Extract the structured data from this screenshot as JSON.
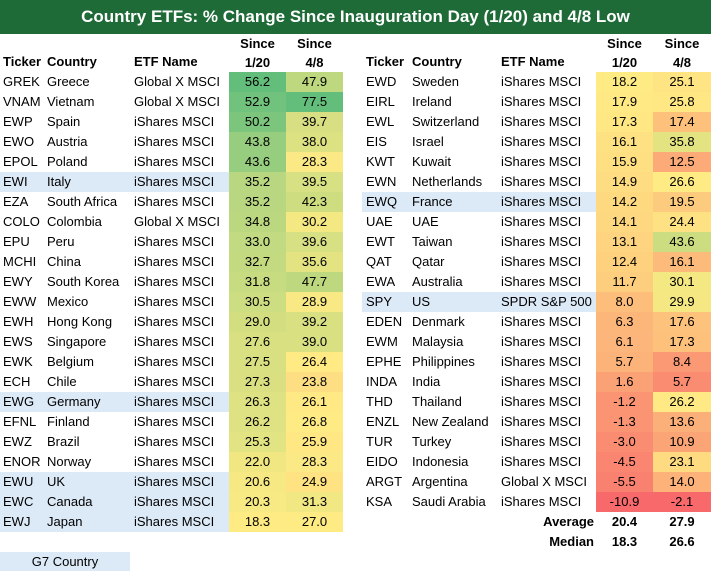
{
  "title": "Country ETFs: % Change Since Inauguration Day (1/20) and 4/8 Low",
  "headers": {
    "ticker": "Ticker",
    "country": "Country",
    "etf_name": "ETF Name",
    "col1_line1": "Since",
    "col1_line2": "1/20",
    "col2_line1": "Since",
    "col2_line2": "4/8"
  },
  "colors": {
    "title_bg": "#1e6b37",
    "g7_highlight": "#dce9f7",
    "scale_low": "#f8696b",
    "scale_mid": "#ffeb84",
    "scale_high": "#63be7b"
  },
  "chart_data": {
    "type": "table",
    "title": "Country ETFs: % Change Since Inauguration Day (1/20) and 4/8 Low",
    "columns": [
      "Ticker",
      "Country",
      "ETF Name",
      "Since 1/20",
      "Since 4/8"
    ],
    "left": [
      {
        "ticker": "GREK",
        "country": "Greece",
        "etf": "Global X MSCI",
        "since_1_20": "56.2",
        "since_4_8": "47.9",
        "g7": false
      },
      {
        "ticker": "VNAM",
        "country": "Vietnam",
        "etf": "Global X MSCI",
        "since_1_20": "52.9",
        "since_4_8": "77.5",
        "g7": false
      },
      {
        "ticker": "EWP",
        "country": "Spain",
        "etf": "iShares MSCI",
        "since_1_20": "50.2",
        "since_4_8": "39.7",
        "g7": false
      },
      {
        "ticker": "EWO",
        "country": "Austria",
        "etf": "iShares MSCI",
        "since_1_20": "43.8",
        "since_4_8": "38.0",
        "g7": false
      },
      {
        "ticker": "EPOL",
        "country": "Poland",
        "etf": "iShares MSCI",
        "since_1_20": "43.6",
        "since_4_8": "28.3",
        "g7": false
      },
      {
        "ticker": "EWI",
        "country": "Italy",
        "etf": "iShares MSCI",
        "since_1_20": "35.2",
        "since_4_8": "39.5",
        "g7": true
      },
      {
        "ticker": "EZA",
        "country": "South Africa",
        "etf": "iShares MSCI",
        "since_1_20": "35.2",
        "since_4_8": "42.3",
        "g7": false
      },
      {
        "ticker": "COLO",
        "country": "Colombia",
        "etf": "Global X MSCI",
        "since_1_20": "34.8",
        "since_4_8": "30.2",
        "g7": false
      },
      {
        "ticker": "EPU",
        "country": "Peru",
        "etf": "iShares MSCI",
        "since_1_20": "33.0",
        "since_4_8": "39.6",
        "g7": false
      },
      {
        "ticker": "MCHI",
        "country": "China",
        "etf": "iShares MSCI",
        "since_1_20": "32.7",
        "since_4_8": "35.6",
        "g7": false
      },
      {
        "ticker": "EWY",
        "country": "South Korea",
        "etf": "iShares MSCI",
        "since_1_20": "31.8",
        "since_4_8": "47.7",
        "g7": false
      },
      {
        "ticker": "EWW",
        "country": "Mexico",
        "etf": "iShares MSCI",
        "since_1_20": "30.5",
        "since_4_8": "28.9",
        "g7": false
      },
      {
        "ticker": "EWH",
        "country": "Hong Kong",
        "etf": "iShares MSCI",
        "since_1_20": "29.0",
        "since_4_8": "39.2",
        "g7": false
      },
      {
        "ticker": "EWS",
        "country": "Singapore",
        "etf": "iShares MSCI",
        "since_1_20": "27.6",
        "since_4_8": "39.0",
        "g7": false
      },
      {
        "ticker": "EWK",
        "country": "Belgium",
        "etf": "iShares MSCI",
        "since_1_20": "27.5",
        "since_4_8": "26.4",
        "g7": false
      },
      {
        "ticker": "ECH",
        "country": "Chile",
        "etf": "iShares MSCI",
        "since_1_20": "27.3",
        "since_4_8": "23.8",
        "g7": false
      },
      {
        "ticker": "EWG",
        "country": "Germany",
        "etf": "iShares MSCI",
        "since_1_20": "26.3",
        "since_4_8": "26.1",
        "g7": true
      },
      {
        "ticker": "EFNL",
        "country": "Finland",
        "etf": "iShares MSCI",
        "since_1_20": "26.2",
        "since_4_8": "26.8",
        "g7": false
      },
      {
        "ticker": "EWZ",
        "country": "Brazil",
        "etf": "iShares MSCI",
        "since_1_20": "25.3",
        "since_4_8": "25.9",
        "g7": false
      },
      {
        "ticker": "ENOR",
        "country": "Norway",
        "etf": "iShares MSCI",
        "since_1_20": "22.0",
        "since_4_8": "28.3",
        "g7": false
      },
      {
        "ticker": "EWU",
        "country": "UK",
        "etf": "iShares MSCI",
        "since_1_20": "20.6",
        "since_4_8": "24.9",
        "g7": true
      },
      {
        "ticker": "EWC",
        "country": "Canada",
        "etf": "iShares MSCI",
        "since_1_20": "20.3",
        "since_4_8": "31.3",
        "g7": true
      },
      {
        "ticker": "EWJ",
        "country": "Japan",
        "etf": "iShares MSCI",
        "since_1_20": "18.3",
        "since_4_8": "27.0",
        "g7": true
      }
    ],
    "right": [
      {
        "ticker": "EWD",
        "country": "Sweden",
        "etf": "iShares MSCI",
        "since_1_20": "18.2",
        "since_4_8": "25.1",
        "g7": false
      },
      {
        "ticker": "EIRL",
        "country": "Ireland",
        "etf": "iShares MSCI",
        "since_1_20": "17.9",
        "since_4_8": "25.8",
        "g7": false
      },
      {
        "ticker": "EWL",
        "country": "Switzerland",
        "etf": "iShares MSCI",
        "since_1_20": "17.3",
        "since_4_8": "17.4",
        "g7": false
      },
      {
        "ticker": "EIS",
        "country": "Israel",
        "etf": "iShares MSCI",
        "since_1_20": "16.1",
        "since_4_8": "35.8",
        "g7": false
      },
      {
        "ticker": "KWT",
        "country": "Kuwait",
        "etf": "iShares MSCI",
        "since_1_20": "15.9",
        "since_4_8": "12.5",
        "g7": false
      },
      {
        "ticker": "EWN",
        "country": "Netherlands",
        "etf": "iShares MSCI",
        "since_1_20": "14.9",
        "since_4_8": "26.6",
        "g7": false
      },
      {
        "ticker": "EWQ",
        "country": "France",
        "etf": "iShares MSCI",
        "since_1_20": "14.2",
        "since_4_8": "19.5",
        "g7": true
      },
      {
        "ticker": "UAE",
        "country": "UAE",
        "etf": "iShares MSCI",
        "since_1_20": "14.1",
        "since_4_8": "24.4",
        "g7": false
      },
      {
        "ticker": "EWT",
        "country": "Taiwan",
        "etf": "iShares MSCI",
        "since_1_20": "13.1",
        "since_4_8": "43.6",
        "g7": false
      },
      {
        "ticker": "QAT",
        "country": "Qatar",
        "etf": "iShares MSCI",
        "since_1_20": "12.4",
        "since_4_8": "16.1",
        "g7": false
      },
      {
        "ticker": "EWA",
        "country": "Australia",
        "etf": "iShares MSCI",
        "since_1_20": "11.7",
        "since_4_8": "30.1",
        "g7": false
      },
      {
        "ticker": "SPY",
        "country": "US",
        "etf": "SPDR S&P 500",
        "since_1_20": "8.0",
        "since_4_8": "29.9",
        "g7": true
      },
      {
        "ticker": "EDEN",
        "country": "Denmark",
        "etf": "iShares MSCI",
        "since_1_20": "6.3",
        "since_4_8": "17.6",
        "g7": false
      },
      {
        "ticker": "EWM",
        "country": "Malaysia",
        "etf": "iShares MSCI",
        "since_1_20": "6.1",
        "since_4_8": "17.3",
        "g7": false
      },
      {
        "ticker": "EPHE",
        "country": "Philippines",
        "etf": "iShares MSCI",
        "since_1_20": "5.7",
        "since_4_8": "8.4",
        "g7": false
      },
      {
        "ticker": "INDA",
        "country": "India",
        "etf": "iShares MSCI",
        "since_1_20": "1.6",
        "since_4_8": "5.7",
        "g7": false
      },
      {
        "ticker": "THD",
        "country": "Thailand",
        "etf": "iShares MSCI",
        "since_1_20": "-1.2",
        "since_4_8": "26.2",
        "g7": false
      },
      {
        "ticker": "ENZL",
        "country": "New Zealand",
        "etf": "iShares MSCI",
        "since_1_20": "-1.3",
        "since_4_8": "13.6",
        "g7": false
      },
      {
        "ticker": "TUR",
        "country": "Turkey",
        "etf": "iShares MSCI",
        "since_1_20": "-3.0",
        "since_4_8": "10.9",
        "g7": false
      },
      {
        "ticker": "EIDO",
        "country": "Indonesia",
        "etf": "iShares MSCI",
        "since_1_20": "-4.5",
        "since_4_8": "23.1",
        "g7": false
      },
      {
        "ticker": "ARGT",
        "country": "Argentina",
        "etf": "Global X MSCI",
        "since_1_20": "-5.5",
        "since_4_8": "14.0",
        "g7": false
      },
      {
        "ticker": "KSA",
        "country": "Saudi Arabia",
        "etf": "iShares MSCI",
        "since_1_20": "-10.9",
        "since_4_8": "-2.1",
        "g7": false
      }
    ],
    "summary": [
      {
        "label": "Average",
        "since_1_20": "20.4",
        "since_4_8": "27.9"
      },
      {
        "label": "Median",
        "since_1_20": "18.3",
        "since_4_8": "26.6"
      }
    ]
  },
  "legend": {
    "label": "G7 Country"
  }
}
